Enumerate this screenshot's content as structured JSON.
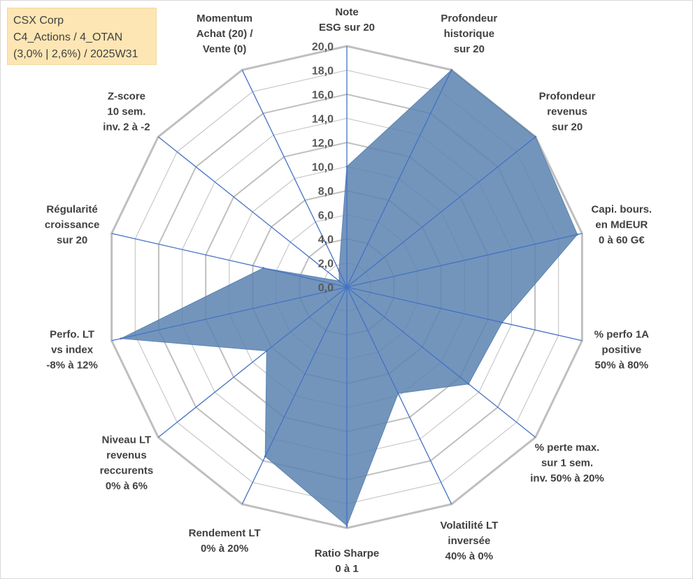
{
  "info_box": {
    "line1": "CSX Corp",
    "line2": "C4_Actions / 4_OTAN",
    "line3": "(3,0% | 2,6%) / 2025W31"
  },
  "chart_data": {
    "type": "radar",
    "title": "",
    "rlim": [
      0,
      20
    ],
    "ticks": [
      "0,0",
      "2,0",
      "4,0",
      "6,0",
      "8,0",
      "10,0",
      "12,0",
      "14,0",
      "16,0",
      "18,0",
      "20,0"
    ],
    "categories": [
      [
        "Note",
        "ESG sur 20"
      ],
      [
        "Profondeur",
        "historique",
        "sur 20"
      ],
      [
        "Profondeur",
        "revenus",
        "sur 20"
      ],
      [
        "Capi. bours.",
        "en MdEUR",
        "0 à 60 G€"
      ],
      [
        "% perfo 1A",
        "positive",
        "50% à 80%"
      ],
      [
        "% perte max.",
        "sur 1 sem.",
        "inv. 50% à 20%"
      ],
      [
        "Volatilité LT",
        "inversée",
        "40% à 0%"
      ],
      [
        "Ratio Sharpe",
        "0 à 1"
      ],
      [
        "Rendement LT",
        "0% à 20%"
      ],
      [
        "Niveau LT",
        "revenus",
        "reccurents",
        "0% à 6%"
      ],
      [
        "Perfo. LT",
        "vs index",
        "-8% à 12%"
      ],
      [
        "Régularité",
        "croissance",
        "sur 20"
      ],
      [
        "Z-score",
        "10 sem.",
        "inv. 2 à -2"
      ],
      [
        "Momentum",
        "Achat (20) /",
        "Vente (0)"
      ]
    ],
    "values": [
      10.0,
      20.0,
      20.0,
      19.6,
      13.2,
      12.9,
      9.8,
      19.8,
      15.6,
      8.5,
      19.2,
      7.1,
      0.8,
      1.5
    ],
    "series_color": "#5b83b0",
    "axis_color": "#4472c4",
    "grid_color": "#bfbfbf",
    "grid": true,
    "legend": "none"
  }
}
